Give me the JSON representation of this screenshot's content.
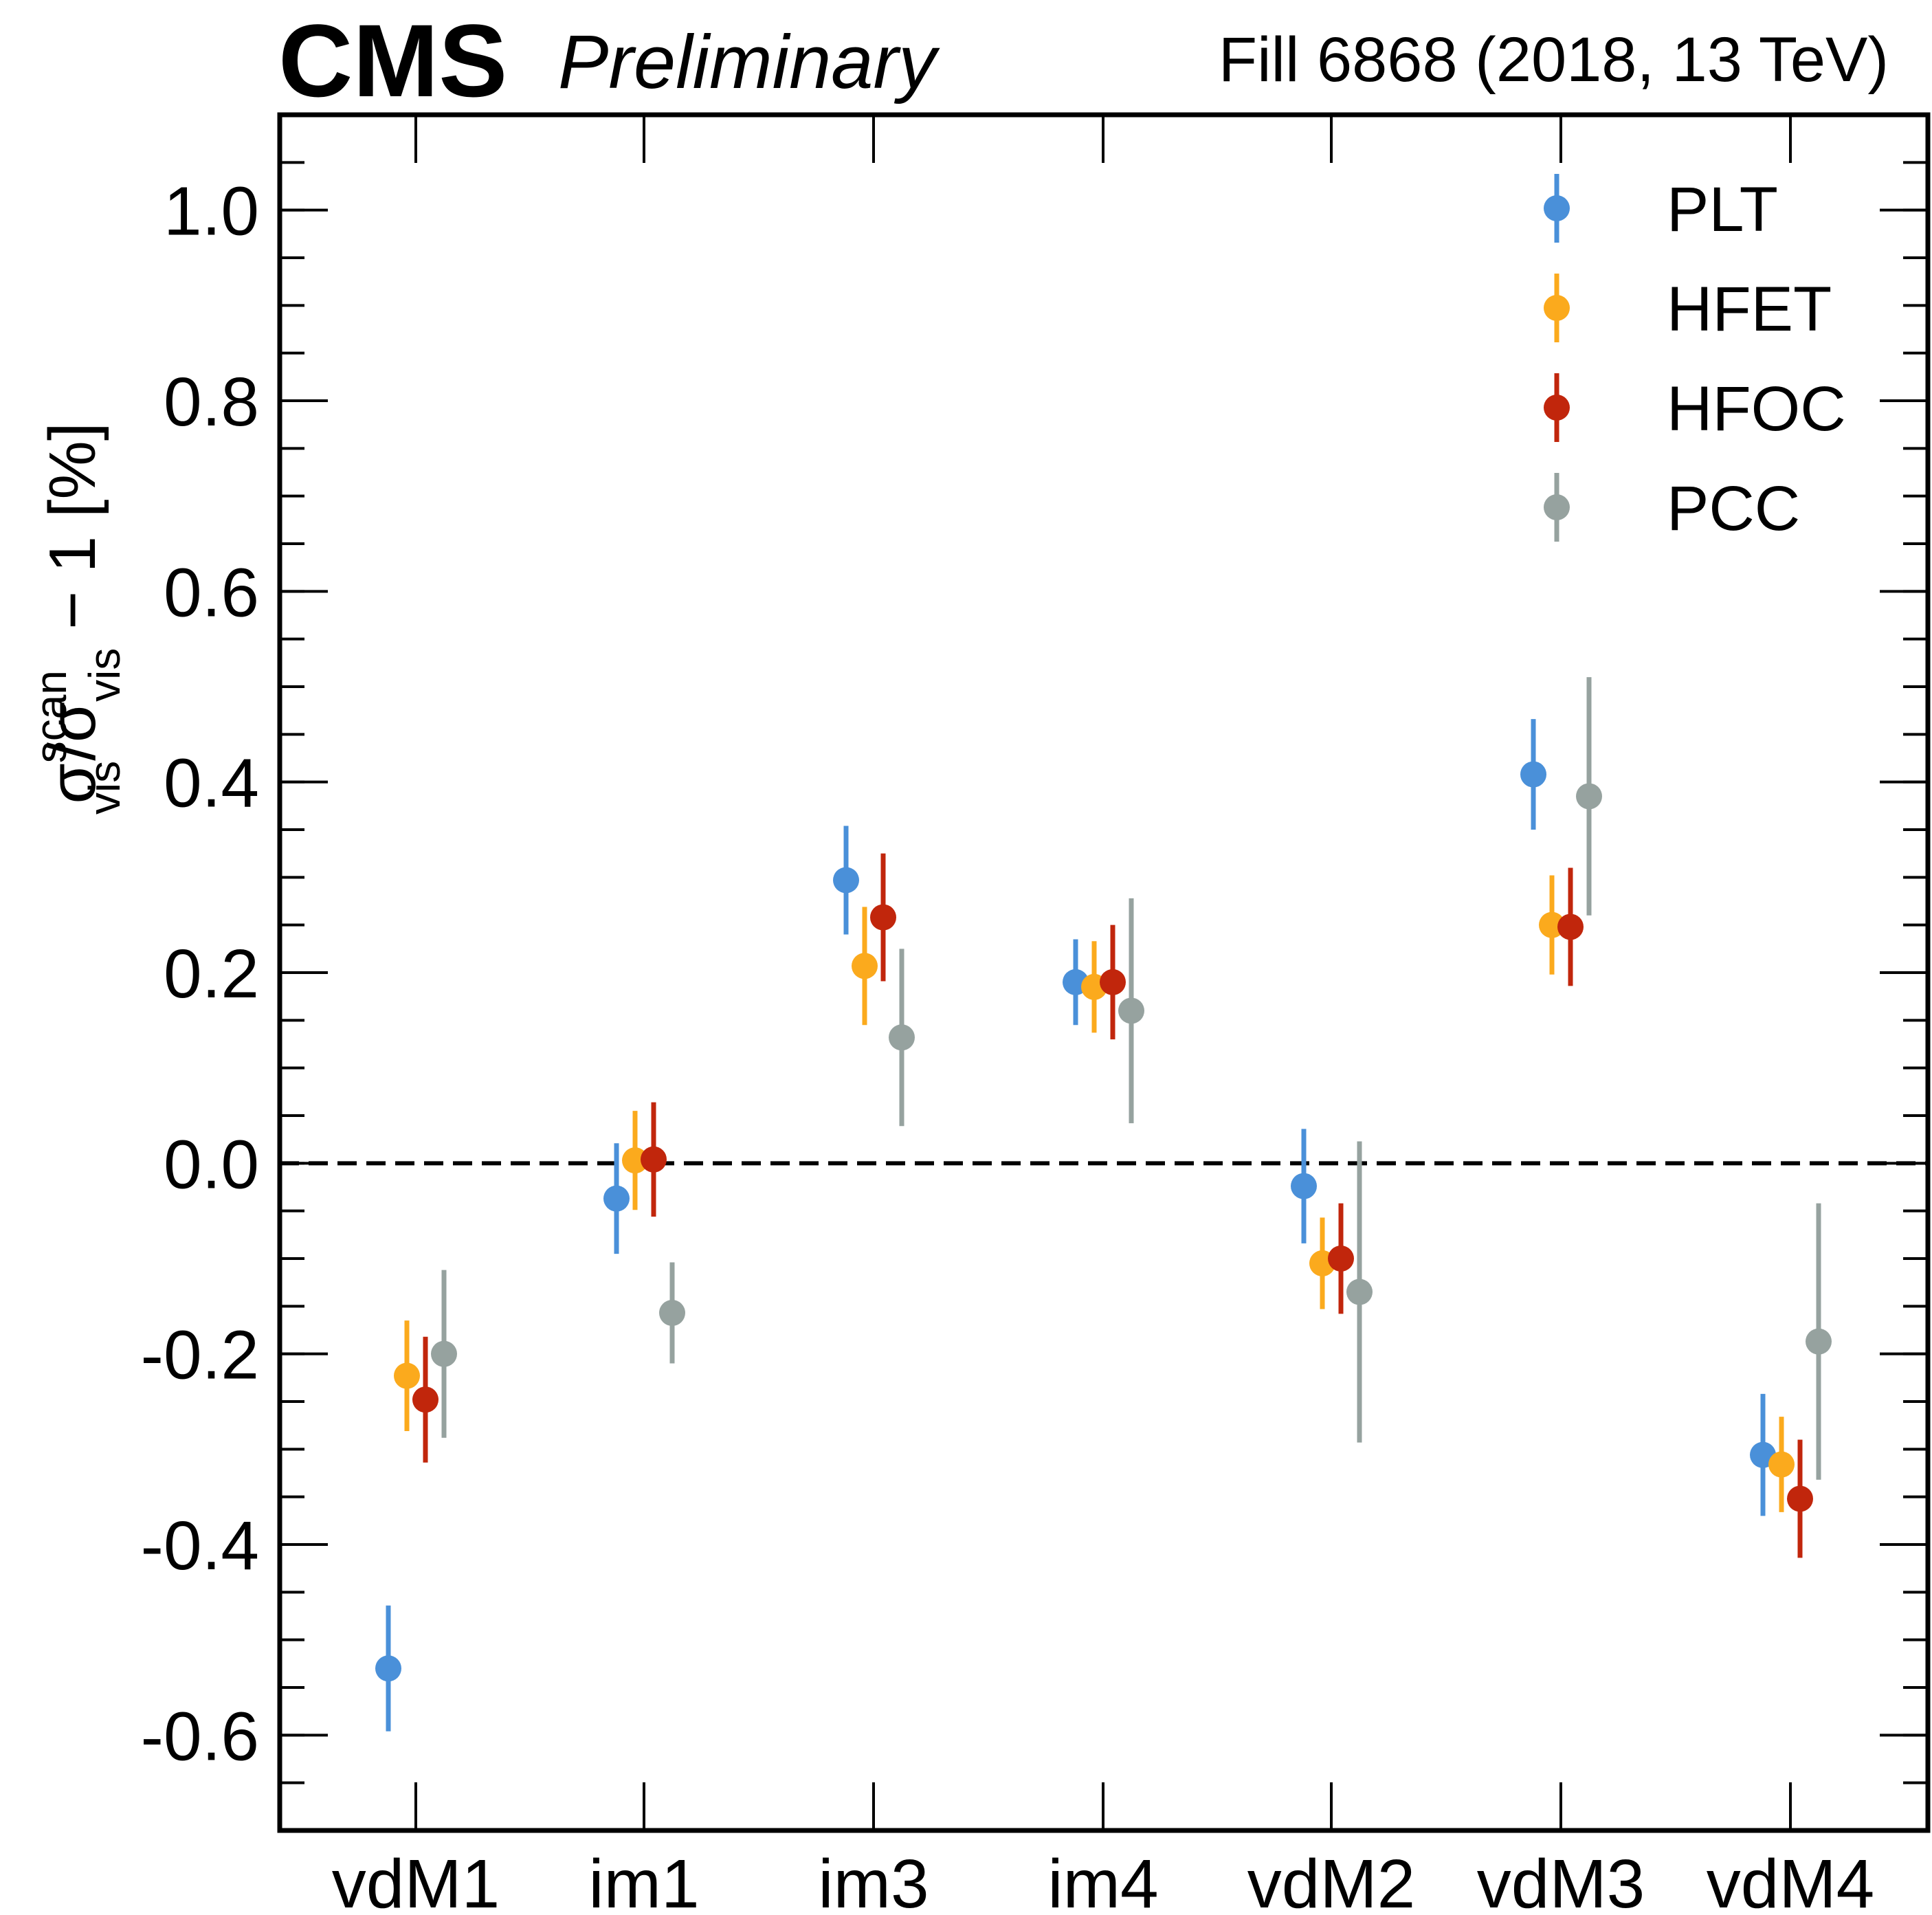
{
  "header": {
    "experiment": "CMS",
    "status": "Preliminary",
    "fill_info": "Fill 6868 (2018, 13 TeV)"
  },
  "chart_data": {
    "type": "scatter",
    "title": "",
    "xlabel": "",
    "ylabel": {
      "sigma": "σ",
      "sup": "scan",
      "sub": "vis",
      "slash": "/",
      "tail": " − 1 [%]"
    },
    "categories": [
      "vdM1",
      "im1",
      "im3",
      "im4",
      "vdM2",
      "vdM3",
      "vdM4"
    ],
    "ylim": [
      -0.7,
      1.1
    ],
    "yticks": [
      -0.6,
      -0.4,
      -0.2,
      0.0,
      0.2,
      0.4,
      0.6,
      0.8,
      1.0
    ],
    "ytick_labels": [
      "-0.6",
      "-0.4",
      "-0.2",
      "0.0",
      "0.2",
      "0.4",
      "0.6",
      "0.8",
      "1.0"
    ],
    "yminor_step": 0.05,
    "reference_line": 0.0,
    "legend_position": "top-right",
    "series": [
      {
        "name": "PLT",
        "color": "#4a90d9",
        "values": [
          -0.53,
          -0.037,
          0.297,
          0.19,
          -0.024,
          0.408,
          -0.306
        ],
        "errors": [
          0.066,
          0.058,
          0.057,
          0.045,
          0.06,
          0.058,
          0.064
        ]
      },
      {
        "name": "HFET",
        "color": "#fbaa1d",
        "values": [
          -0.223,
          0.003,
          0.207,
          0.185,
          -0.105,
          0.25,
          -0.316
        ],
        "errors": [
          0.058,
          0.052,
          0.062,
          0.048,
          0.048,
          0.052,
          0.05
        ]
      },
      {
        "name": "HFOC",
        "color": "#c1260c",
        "values": [
          -0.248,
          0.004,
          0.258,
          0.19,
          -0.1,
          0.248,
          -0.352
        ],
        "errors": [
          0.066,
          0.06,
          0.067,
          0.06,
          0.058,
          0.062,
          0.062
        ]
      },
      {
        "name": "PCC",
        "color": "#96a29f",
        "values": [
          -0.2,
          -0.157,
          0.132,
          0.16,
          -0.135,
          0.385,
          -0.187
        ],
        "errors": [
          0.088,
          0.053,
          0.093,
          0.118,
          0.158,
          0.125,
          0.145
        ]
      }
    ]
  }
}
